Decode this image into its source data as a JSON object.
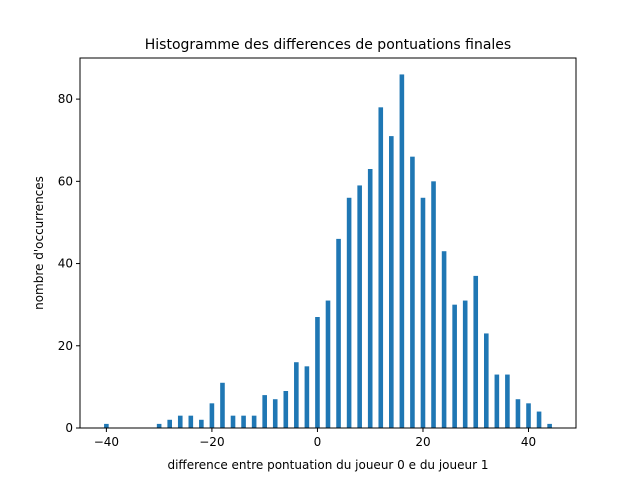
{
  "chart_data": {
    "type": "bar",
    "title": "Histogramme des differences de pontuations finales",
    "xlabel": "difference entre pontuation du joueur 0 e du joueur 1",
    "ylabel": "nombre d'occurrences",
    "xlim": [
      -45,
      49
    ],
    "ylim": [
      0,
      90
    ],
    "xticks": [
      -40,
      -20,
      0,
      20,
      40
    ],
    "yticks": [
      0,
      20,
      40,
      60,
      80
    ],
    "bar_color": "#1f77b4",
    "grid": false,
    "x": [
      -40,
      -30,
      -28,
      -26,
      -24,
      -22,
      -20,
      -18,
      -16,
      -14,
      -12,
      -10,
      -8,
      -6,
      -4,
      -2,
      0,
      2,
      4,
      6,
      8,
      10,
      12,
      14,
      16,
      18,
      20,
      22,
      24,
      26,
      28,
      30,
      32,
      34,
      36,
      38,
      40,
      42,
      44
    ],
    "values": [
      1,
      1,
      2,
      3,
      3,
      2,
      6,
      11,
      3,
      3,
      3,
      8,
      7,
      9,
      16,
      15,
      27,
      31,
      46,
      56,
      59,
      63,
      78,
      71,
      86,
      66,
      56,
      60,
      43,
      30,
      31,
      37,
      23,
      13,
      13,
      7,
      6,
      4,
      1
    ]
  }
}
